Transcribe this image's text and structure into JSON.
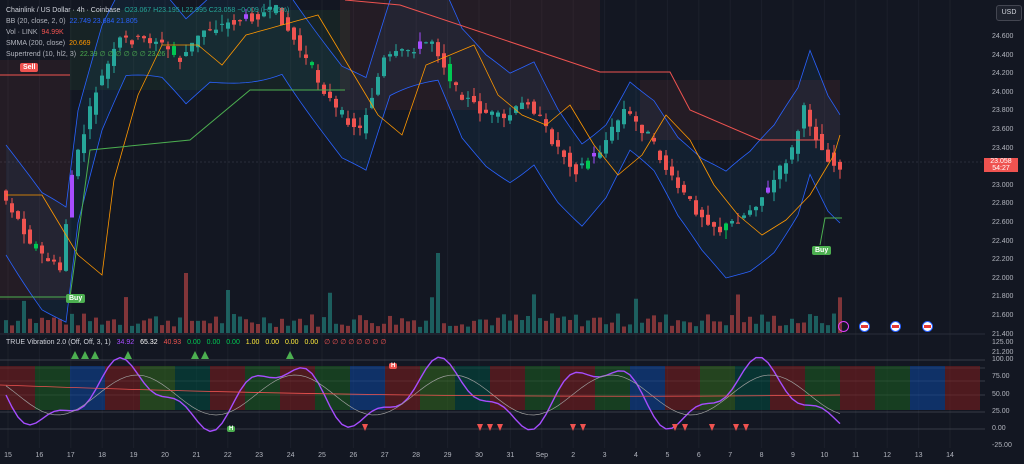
{
  "legend": {
    "symbol": "Chainlink / US Dollar · 4h · Coinbase",
    "ohlc": "O23.067 H23.195 L22.995 C23.058 −0.009 (−0.05%)",
    "bb_label": "BB (20, close, 2, 0)",
    "bb_values": "22.749 23.684 21.805",
    "vol_label": "Vol · LINK",
    "vol_value": "94.99K",
    "smma_label": "SMMA (200, close)",
    "smma_value": "20.669",
    "st_label": "Supertrend (10, hl2, 3)",
    "st_value": "22.39 ∅ ∅ ∅ ∅ ∅ ∅ 23.26"
  },
  "osc": {
    "label": "TRUE Vibration 2.0 (Off, Off, 3, 1)",
    "v1": "34.92",
    "v2": "65.32",
    "v3": "40.93",
    "v4": "0.00",
    "v5": "0.00",
    "v6": "0.00",
    "v7": "1.00",
    "v8": "0.00",
    "v9": "0.00",
    "v10": "0.00",
    "v11": "∅ ∅ ∅ ∅ ∅ ∅ ∅ ∅"
  },
  "labels": {
    "sell": "Sell",
    "buy1": "Buy",
    "buy2": "Buy",
    "h": "H",
    "l": "H",
    "currency": "USD"
  },
  "price_axis": [
    "24.600",
    "24.400",
    "24.200",
    "24.000",
    "23.800",
    "23.600",
    "23.400",
    "23.200",
    "23.000",
    "22.800",
    "22.600",
    "22.400",
    "22.200",
    "22.000",
    "21.800",
    "21.600",
    "21.400",
    "21.200"
  ],
  "current_price": "23.058",
  "countdown": "54:27",
  "osc_axis": [
    "125.00",
    "100.00",
    "75.00",
    "50.00",
    "25.00",
    "0.00",
    "-25.00"
  ],
  "time_axis": [
    "15",
    "16",
    "17",
    "18",
    "19",
    "20",
    "21",
    "22",
    "23",
    "24",
    "25",
    "26",
    "27",
    "28",
    "29",
    "30",
    "31",
    "Sep",
    "2",
    "3",
    "4",
    "5",
    "6",
    "7",
    "8",
    "9",
    "10",
    "11",
    "12",
    "13",
    "14"
  ],
  "colors": {
    "up": "#26a69a",
    "down": "#ef5350",
    "green": "#00c853",
    "purple": "#a64dff",
    "bg": "#131722"
  }
}
